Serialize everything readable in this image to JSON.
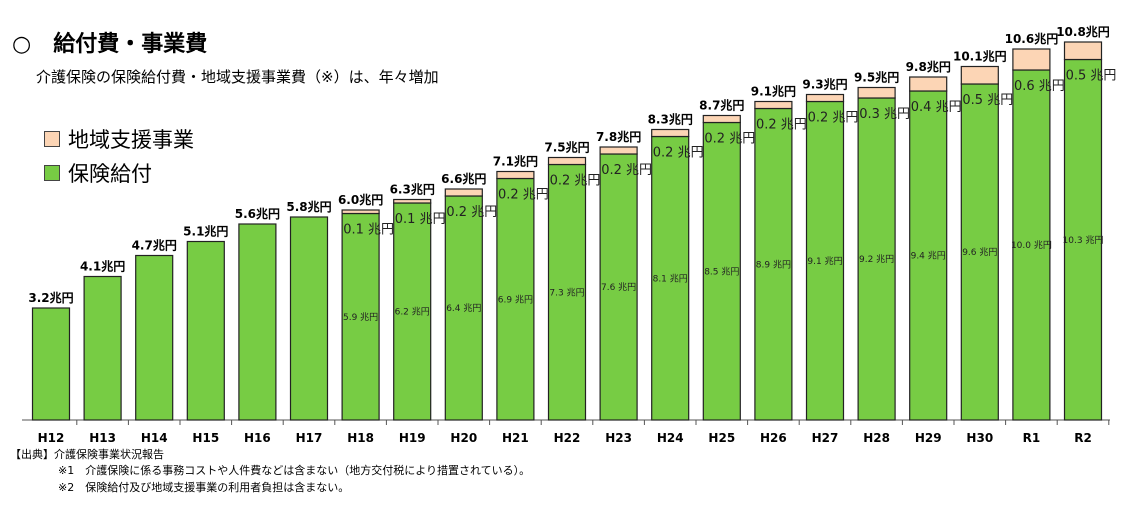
{
  "header": {
    "title": "○　給付費・事業費",
    "subtitle": "介護保険の保険給付費・地域支援事業費（※）は、年々増加"
  },
  "legend": [
    {
      "label": "地域支援事業",
      "color": "#fcd5b5"
    },
    {
      "label": "保険給付",
      "color": "#77cc44"
    }
  ],
  "footer": {
    "source": "【出典】介護保険事業状況報告",
    "note1": "※1　介護保険に係る事務コストや人件費などは含まない（地方交付税により措置されている）。",
    "note2": "※2　保険給付及び地域支援事業の利用者負担は含まない。"
  },
  "chart_data": {
    "type": "bar",
    "stacked": true,
    "unit": "兆円",
    "categories": [
      "H12",
      "H13",
      "H14",
      "H15",
      "H16",
      "H17",
      "H18",
      "H19",
      "H20",
      "H21",
      "H22",
      "H23",
      "H24",
      "H25",
      "H26",
      "H27",
      "H28",
      "H29",
      "H30",
      "R1",
      "R2"
    ],
    "series": [
      {
        "name": "保険給付",
        "color": "#77cc44",
        "values": [
          3.2,
          4.1,
          4.7,
          5.1,
          5.6,
          5.8,
          5.9,
          6.2,
          6.4,
          6.9,
          7.3,
          7.6,
          8.1,
          8.5,
          8.9,
          9.1,
          9.2,
          9.4,
          9.6,
          10.0,
          10.3
        ],
        "labels": [
          "",
          "",
          "",
          "",
          "",
          "",
          "5.9 兆円",
          "6.2 兆円",
          "6.4 兆円",
          "6.9 兆円",
          "7.3 兆円",
          "7.6 兆円",
          "8.1 兆円",
          "8.5 兆円",
          "8.9 兆円",
          "9.1 兆円",
          "9.2 兆円",
          "9.4 兆円",
          "9.6 兆円",
          "10.0 兆円",
          "10.3 兆円"
        ]
      },
      {
        "name": "地域支援事業",
        "color": "#fcd5b5",
        "values": [
          0,
          0,
          0,
          0,
          0,
          0,
          0.1,
          0.1,
          0.2,
          0.2,
          0.2,
          0.2,
          0.2,
          0.2,
          0.2,
          0.2,
          0.3,
          0.4,
          0.5,
          0.6,
          0.5
        ],
        "labels": [
          "",
          "",
          "",
          "",
          "",
          "",
          "0.1 兆円",
          "0.1 兆円",
          "0.2 兆円",
          "0.2 兆円",
          "0.2 兆円",
          "0.2 兆円",
          "0.2 兆円",
          "0.2 兆円",
          "0.2 兆円",
          "0.2 兆円",
          "0.3 兆円",
          "0.4 兆円",
          "0.5 兆円",
          "0.6 兆円",
          "0.5 兆円"
        ]
      }
    ],
    "totals": [
      "3.2兆円",
      "4.1兆円",
      "4.7兆円",
      "5.1兆円",
      "5.6兆円",
      "5.8兆円",
      "6.0兆円",
      "6.3兆円",
      "6.6兆円",
      "7.1兆円",
      "7.5兆円",
      "7.8兆円",
      "8.3兆円",
      "8.7兆円",
      "9.1兆円",
      "9.3兆円",
      "9.5兆円",
      "9.8兆円",
      "10.1兆円",
      "10.6兆円",
      "10.8兆円"
    ],
    "ylim": [
      0,
      11
    ],
    "grid": false,
    "legend_position": "top-left"
  }
}
